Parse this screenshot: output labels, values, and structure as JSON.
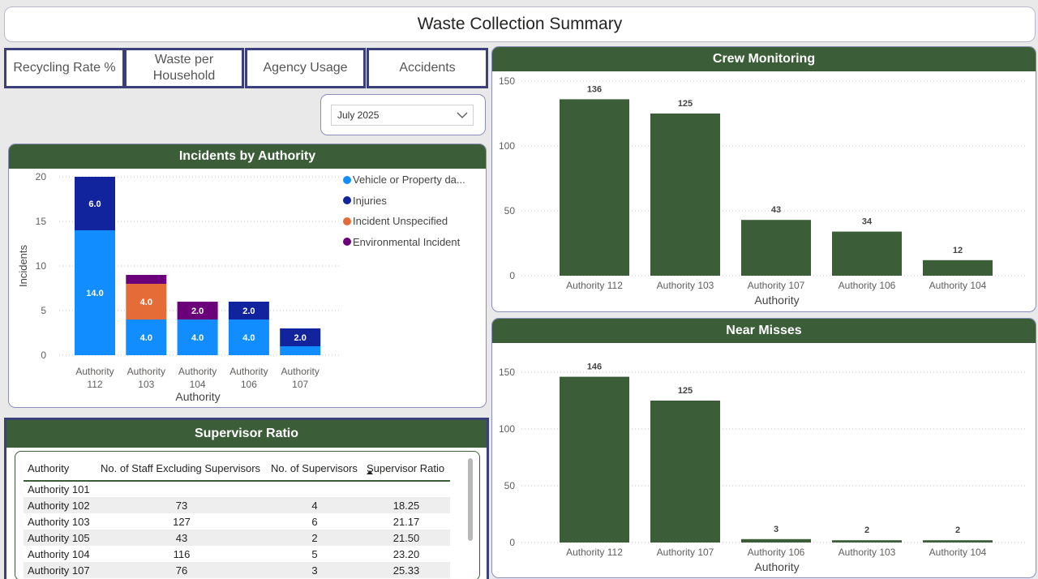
{
  "header": {
    "title": "Waste Collection Summary"
  },
  "nav": [
    {
      "label": "Recycling Rate %"
    },
    {
      "label": "Waste per Household"
    },
    {
      "label": "Agency Usage"
    },
    {
      "label": "Accidents"
    }
  ],
  "slicer": {
    "selected": "July 2025"
  },
  "incidents": {
    "title": "Incidents by Authority",
    "colors": {
      "vehicle": "#118dff",
      "injuries": "#12239e",
      "unspecified": "#e66c37",
      "environmental": "#6b007b"
    },
    "legend": [
      "Vehicle or Property da...",
      "Injuries",
      "Incident Unspecified",
      "Environmental Incident"
    ],
    "category_lines": [
      [
        "Authority",
        "112"
      ],
      [
        "Authority",
        "103"
      ],
      [
        "Authority",
        "104"
      ],
      [
        "Authority",
        "106"
      ],
      [
        "Authority",
        "107"
      ]
    ]
  },
  "crew": {
    "title": "Crew Monitoring",
    "bar_color": "#3b5e38"
  },
  "near": {
    "title": "Near Misses",
    "bar_color": "#3b5e38"
  },
  "supervisor": {
    "title": "Supervisor Ratio",
    "headers": [
      "Authority",
      "No. of Staff Excluding Supervisors",
      "No. of Supervisors",
      "Supervisor Ratio"
    ],
    "rows": [
      [
        "Authority 101",
        "",
        "",
        ""
      ],
      [
        "Authority 102",
        "73",
        "4",
        "18.25"
      ],
      [
        "Authority 103",
        "127",
        "6",
        "21.17"
      ],
      [
        "Authority 105",
        "43",
        "2",
        "21.50"
      ],
      [
        "Authority 104",
        "116",
        "5",
        "23.20"
      ],
      [
        "Authority 107",
        "76",
        "3",
        "25.33"
      ]
    ]
  },
  "chart_data": [
    {
      "type": "bar",
      "stacked": true,
      "title": "Incidents by Authority",
      "xlabel": "Authority",
      "ylabel": "Incidents",
      "categories": [
        "Authority 112",
        "Authority 103",
        "Authority 104",
        "Authority 106",
        "Authority 107"
      ],
      "ylim": [
        0,
        20
      ],
      "yticks": [
        0,
        5,
        10,
        15,
        20
      ],
      "grid": true,
      "legend_position": "top-right",
      "series": [
        {
          "name": "Vehicle or Property da...",
          "values": [
            14,
            4,
            4,
            4,
            1
          ]
        },
        {
          "name": "Injuries",
          "values": [
            6,
            0,
            0,
            2,
            2
          ]
        },
        {
          "name": "Incident Unspecified",
          "values": [
            0,
            4,
            0,
            0,
            0
          ]
        },
        {
          "name": "Environmental Incident",
          "values": [
            0,
            1,
            2,
            0,
            0
          ]
        }
      ],
      "data_labels": [
        {
          "category": "Authority 112",
          "series": "Vehicle or Property da...",
          "text": "14.0"
        },
        {
          "category": "Authority 112",
          "series": "Injuries",
          "text": "6.0"
        },
        {
          "category": "Authority 103",
          "series": "Vehicle or Property da...",
          "text": "4.0"
        },
        {
          "category": "Authority 103",
          "series": "Incident Unspecified",
          "text": "4.0"
        },
        {
          "category": "Authority 104",
          "series": "Vehicle or Property da...",
          "text": "4.0"
        },
        {
          "category": "Authority 104",
          "series": "Environmental Incident",
          "text": "2.0"
        },
        {
          "category": "Authority 106",
          "series": "Vehicle or Property da...",
          "text": "4.0"
        },
        {
          "category": "Authority 106",
          "series": "Injuries",
          "text": "2.0"
        },
        {
          "category": "Authority 107",
          "series": "Injuries",
          "text": "2.0"
        }
      ]
    },
    {
      "type": "bar",
      "title": "Crew Monitoring",
      "xlabel": "Authority",
      "ylabel": "",
      "categories": [
        "Authority 112",
        "Authority 103",
        "Authority 107",
        "Authority 106",
        "Authority 104"
      ],
      "values": [
        136,
        125,
        43,
        34,
        12
      ],
      "ylim": [
        0,
        150
      ],
      "yticks": [
        0,
        50,
        100,
        150
      ],
      "grid": true
    },
    {
      "type": "bar",
      "title": "Near Misses",
      "xlabel": "Authority",
      "ylabel": "",
      "categories": [
        "Authority 112",
        "Authority 107",
        "Authority 106",
        "Authority 103",
        "Authority 104"
      ],
      "values": [
        146,
        125,
        3,
        2,
        2
      ],
      "ylim": [
        0,
        150
      ],
      "yticks": [
        0,
        50,
        100,
        150
      ],
      "grid": true
    }
  ]
}
